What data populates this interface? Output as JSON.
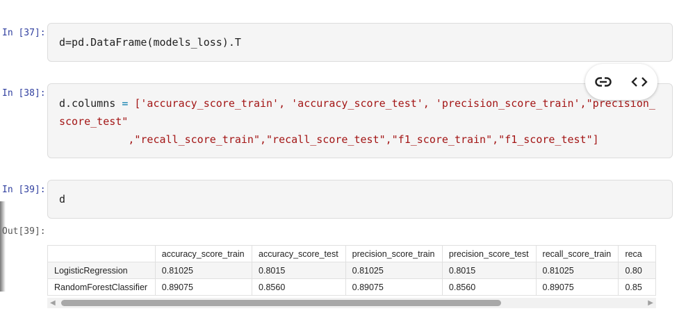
{
  "cells": [
    {
      "prompt": "In [37]:",
      "code": "d=pd.DataFrame(models_loss).T"
    },
    {
      "prompt": "In [38]:",
      "code_prefix": "d.columns ",
      "code_eq": "=",
      "code_line1": " ['accuracy_score_train', 'accuracy_score_test', 'precision_score_train',\"precision_",
      "code_line2": "score_test\"",
      "code_line3": "           ,\"recall_score_train\",\"recall_score_test\",\"f1_score_train\",\"f1_score_test\"]"
    },
    {
      "prompt": "In [39]:",
      "code": "d"
    }
  ],
  "output": {
    "prompt": "Out[39]:",
    "columns": [
      "",
      "accuracy_score_train",
      "accuracy_score_test",
      "precision_score_train",
      "precision_score_test",
      "recall_score_train",
      "reca"
    ],
    "rows": [
      [
        "LogisticRegression",
        "0.81025",
        "0.8015",
        "0.81025",
        "0.8015",
        "0.81025",
        "0.80"
      ],
      [
        "RandomForestClassifier",
        "0.89075",
        "0.8560",
        "0.89075",
        "0.8560",
        "0.89075",
        "0.85"
      ]
    ]
  },
  "toolbar": {
    "icons": [
      "link-icon",
      "code-icon"
    ]
  }
}
